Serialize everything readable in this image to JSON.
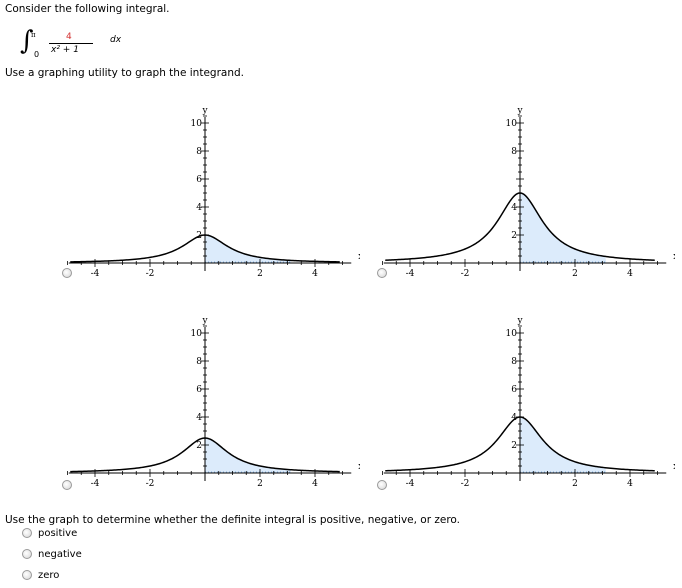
{
  "question": {
    "prompt": "Consider the following integral.",
    "integral": {
      "lower": "0",
      "upper": "π",
      "numerator": "4",
      "denominator": "x² + 1",
      "differential": "dx"
    },
    "instruction": "Use a graphing utility to graph the integrand.",
    "follow_up": "Use the graph to determine whether the definite integral is positive, negative, or zero."
  },
  "answer_options": [
    {
      "label": "positive"
    },
    {
      "label": "negative"
    },
    {
      "label": "zero"
    }
  ],
  "axis_labels": {
    "x": "x",
    "y": "y"
  },
  "colors": {
    "shade": "#dcebfb",
    "curve": "#000000",
    "numerator": "#d32f2f"
  },
  "chart_data": [
    {
      "type": "area",
      "function": "2/(x^2+1)",
      "peak": 2,
      "shaded_x": [
        0,
        3.14
      ],
      "xlim": [
        -5.5,
        5.5
      ],
      "ylim": [
        0,
        11
      ],
      "x_ticks": [
        "-4",
        "-2",
        "2",
        "4"
      ],
      "y_ticks": [
        "10",
        "8",
        "6",
        "4",
        "2"
      ],
      "y_tick_values": [
        10,
        8,
        6,
        4,
        2
      ]
    },
    {
      "type": "area",
      "function": "5/(x^2+1)",
      "peak": 5,
      "shaded_x": [
        0,
        3.14
      ],
      "xlim": [
        -5.5,
        5.5
      ],
      "ylim": [
        0,
        11
      ],
      "x_ticks": [
        "-4",
        "-2",
        "2",
        "4"
      ],
      "y_ticks": [
        "10",
        "8",
        "4",
        "2"
      ],
      "y_tick_values": [
        10,
        8,
        4,
        2
      ]
    },
    {
      "type": "area",
      "function": "2.5/(x^2+1)",
      "peak": 2.5,
      "shaded_x": [
        0,
        3.14
      ],
      "xlim": [
        -5.5,
        5.5
      ],
      "ylim": [
        0,
        11
      ],
      "x_ticks": [
        "-4",
        "-2",
        "2",
        "4"
      ],
      "y_ticks": [
        "10",
        "8",
        "6",
        "4",
        "2"
      ],
      "y_tick_values": [
        10,
        8,
        6,
        4,
        2
      ]
    },
    {
      "type": "area",
      "function": "4/(x^2+1)",
      "peak": 4,
      "shaded_x": [
        0,
        3.14
      ],
      "xlim": [
        -5.5,
        5.5
      ],
      "ylim": [
        0,
        11
      ],
      "x_ticks": [
        "-4",
        "-2",
        "2",
        "4"
      ],
      "y_ticks": [
        "10",
        "8",
        "6",
        "4",
        "2"
      ],
      "y_tick_values": [
        10,
        8,
        6,
        4,
        2
      ]
    }
  ]
}
